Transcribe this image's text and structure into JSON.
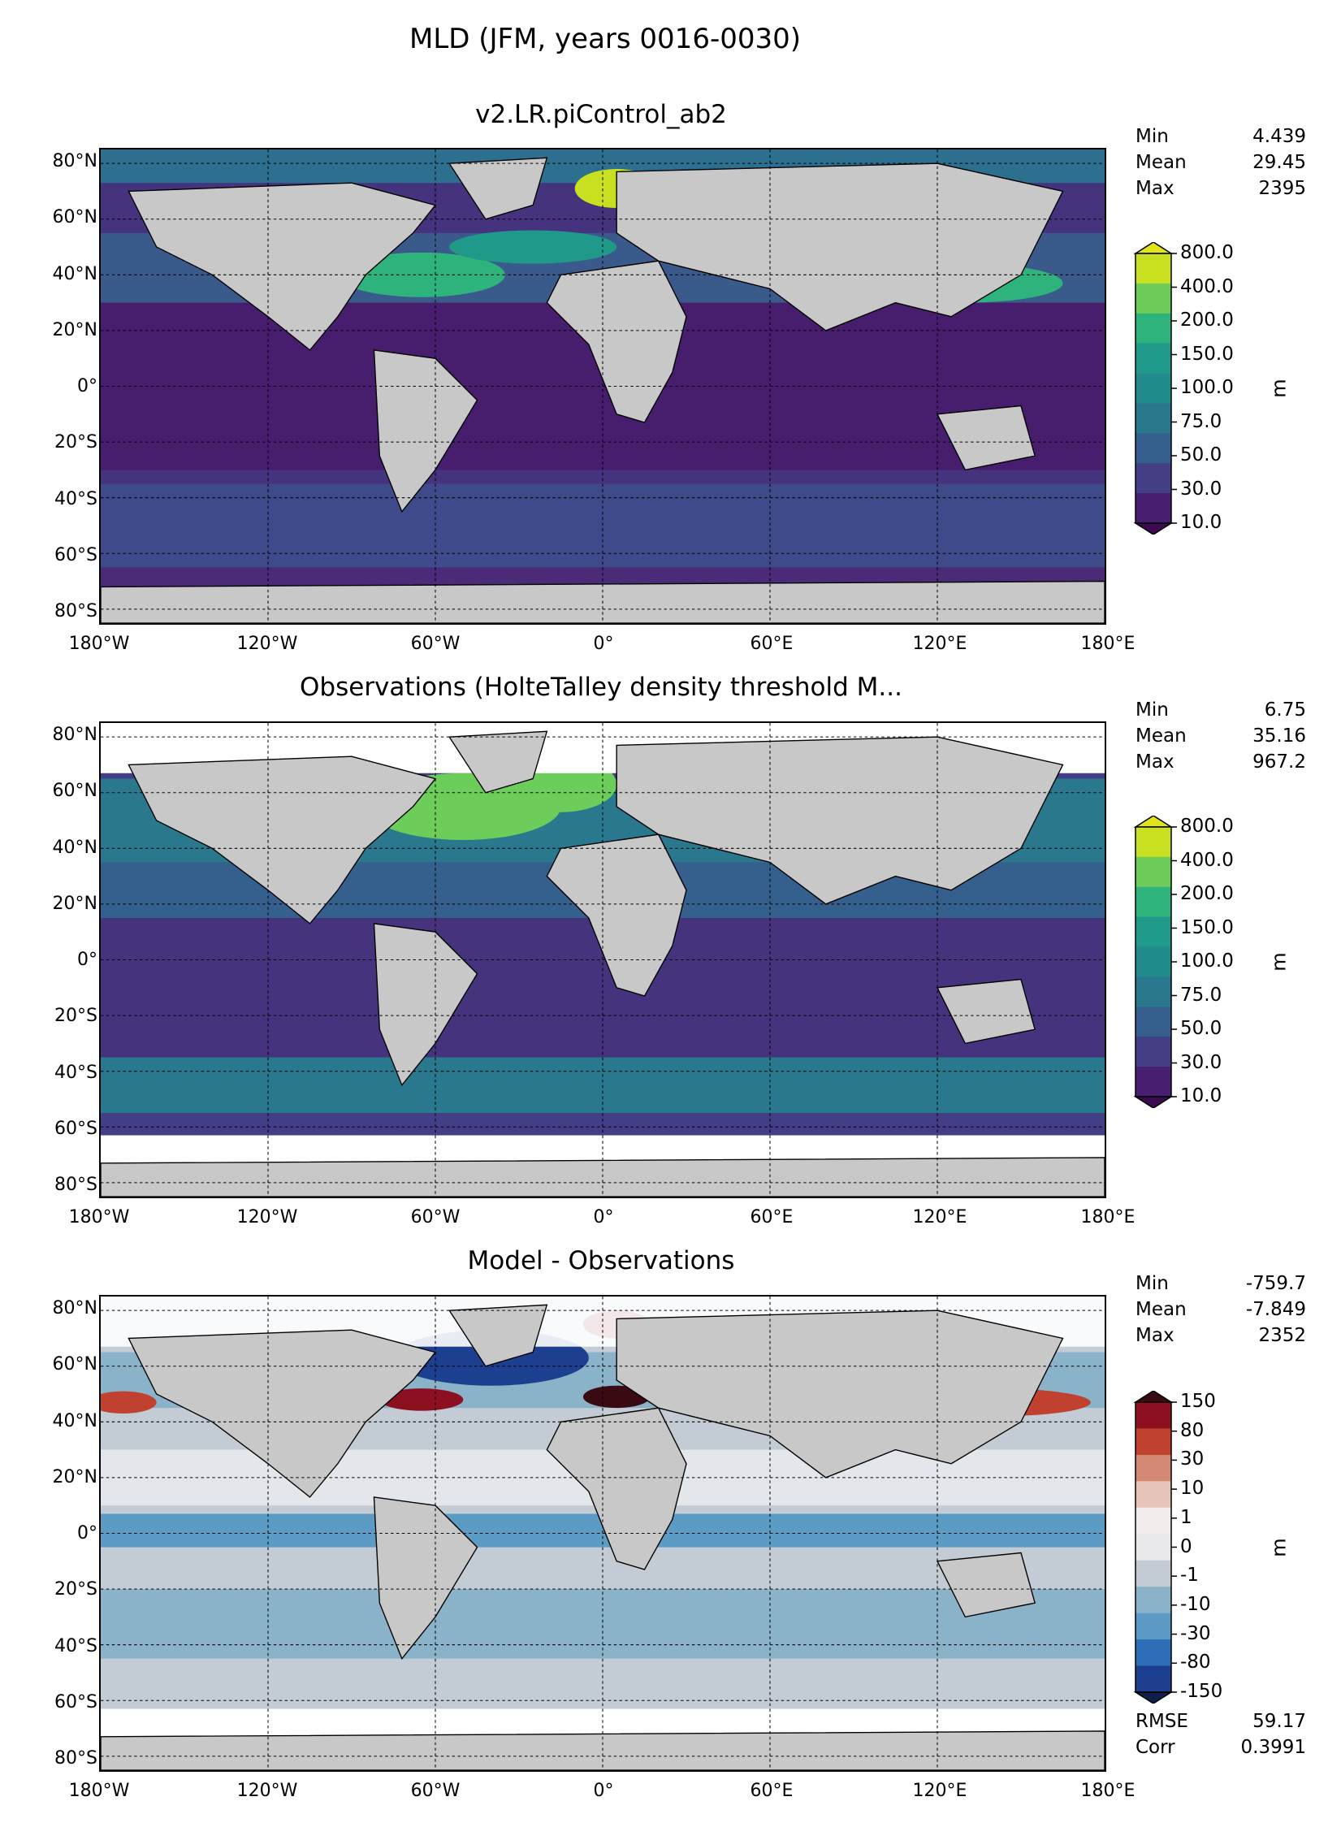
{
  "title": "MLD (JFM, years 0016-0030)",
  "lat_labels": [
    "80°N",
    "60°N",
    "40°N",
    "20°N",
    "0°",
    "20°S",
    "40°S",
    "60°S",
    "80°S"
  ],
  "lon_labels": [
    "180°W",
    "120°W",
    "60°W",
    "0°",
    "60°E",
    "120°E",
    "180°E"
  ],
  "panels": [
    {
      "title": "v2.LR.piControl_ab2",
      "stats": [
        {
          "label": "Min",
          "value": "4.439"
        },
        {
          "label": "Mean",
          "value": "29.45"
        },
        {
          "label": "Max",
          "value": "2395"
        }
      ],
      "colorbar": {
        "unit": "m",
        "labels": [
          "800.0",
          "400.0",
          "200.0",
          "150.0",
          "100.0",
          "75.0",
          "50.0",
          "30.0",
          "10.0"
        ],
        "colors": [
          "#c8e020",
          "#6ccd5a",
          "#2eb37c",
          "#1f9a8a",
          "#228c8d",
          "#2a788e",
          "#355f8d",
          "#433e85",
          "#481f70"
        ],
        "over_color": "#e3e418",
        "under_color": "#3b0a52"
      }
    },
    {
      "title": "Observations (HolteTalley density threshold M...",
      "stats": [
        {
          "label": "Min",
          "value": "6.75"
        },
        {
          "label": "Mean",
          "value": "35.16"
        },
        {
          "label": "Max",
          "value": "967.2"
        }
      ],
      "colorbar": {
        "unit": "m",
        "labels": [
          "800.0",
          "400.0",
          "200.0",
          "150.0",
          "100.0",
          "75.0",
          "50.0",
          "30.0",
          "10.0"
        ],
        "colors": [
          "#c8e020",
          "#6ccd5a",
          "#2eb37c",
          "#1f9a8a",
          "#228c8d",
          "#2a788e",
          "#355f8d",
          "#433e85",
          "#481f70"
        ],
        "over_color": "#e3e418",
        "under_color": "#3b0a52"
      }
    },
    {
      "title": "Model - Observations",
      "stats": [
        {
          "label": "Min",
          "value": "-759.7"
        },
        {
          "label": "Mean",
          "value": "-7.849"
        },
        {
          "label": "Max",
          "value": "2352"
        }
      ],
      "extra_stats": [
        {
          "label": "RMSE",
          "value": "59.17"
        },
        {
          "label": "Corr",
          "value": "0.3991"
        }
      ],
      "colorbar": {
        "unit": "m",
        "labels": [
          "150",
          "80",
          "30",
          "10",
          "1",
          "0",
          "-1",
          "-10",
          "-30",
          "-80",
          "-150"
        ],
        "colors": [
          "#8c1020",
          "#c0412f",
          "#d48a72",
          "#e6c4ba",
          "#f2ecec",
          "#e8e8ea",
          "#c3ccd4",
          "#8ab2c8",
          "#5c9bc4",
          "#2c6fb8",
          "#1d3f8f"
        ],
        "over_color": "#3a0a12",
        "under_color": "#0f1f4a"
      }
    }
  ]
}
